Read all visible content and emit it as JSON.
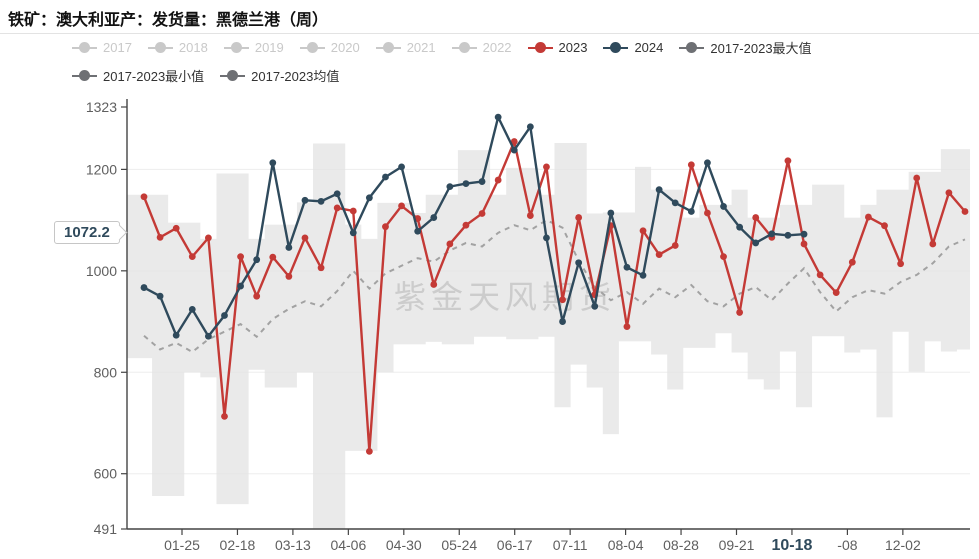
{
  "title": "铁矿：澳大利亚产：发货量：黑德兰港（周）",
  "watermark": "紫金天风期货",
  "badge": {
    "value": "1072.2"
  },
  "legend": {
    "rows": [
      [
        {
          "label": "2017",
          "color": "#c9c9c9",
          "active": false
        },
        {
          "label": "2018",
          "color": "#c9c9c9",
          "active": false
        },
        {
          "label": "2019",
          "color": "#c9c9c9",
          "active": false
        },
        {
          "label": "2020",
          "color": "#c9c9c9",
          "active": false
        },
        {
          "label": "2021",
          "color": "#c9c9c9",
          "active": false
        },
        {
          "label": "2022",
          "color": "#c9c9c9",
          "active": false
        },
        {
          "label": "2023",
          "color": "#c43a36",
          "active": true
        },
        {
          "label": "2024",
          "color": "#2f4a5c",
          "active": true
        },
        {
          "label": "2017-2023最大值",
          "color": "#6e7074",
          "active": true
        }
      ],
      [
        {
          "label": "2017-2023最小值",
          "color": "#6e7074",
          "active": true
        },
        {
          "label": "2017-2023均值",
          "color": "#6e7074",
          "active": true
        }
      ]
    ]
  },
  "chart_data": {
    "type": "line",
    "title": "铁矿：澳大利亚产：发货量：黑德兰港（周）",
    "ylim": [
      491,
      1323
    ],
    "y_axis": {
      "ticks": [
        1323,
        1200,
        1000,
        800,
        600,
        491
      ]
    },
    "x_axis": {
      "labels": [
        "01-25",
        "02-18",
        "03-13",
        "04-06",
        "04-30",
        "05-24",
        "06-17",
        "07-11",
        "08-04",
        "08-28",
        "09-21",
        "10-18",
        "-08",
        "12-02"
      ],
      "highlight": "10-18"
    },
    "grid": true,
    "legend_position": "top",
    "band_color": "#e3e3e3",
    "series": [
      {
        "name": "2023",
        "style": "line-marker",
        "color": "#c43a36",
        "values": [
          1146,
          1066,
          1084,
          1028,
          1065,
          713,
          1028,
          950,
          1027,
          989,
          1065,
          1006,
          1124,
          1118,
          644,
          1087,
          1128,
          1103,
          973,
          1053,
          1090,
          1113,
          1179,
          1255,
          1109,
          1205,
          943,
          1105,
          953,
          1089,
          890,
          1079,
          1032,
          1050,
          1209,
          1114,
          1028,
          918,
          1105,
          1066,
          1217,
          1053,
          992,
          957,
          1017,
          1106,
          1089,
          1014,
          1183,
          1053,
          1154,
          1117
        ]
      },
      {
        "name": "2024",
        "style": "line-marker",
        "color": "#2f4a5c",
        "end_label": "1072.2",
        "values": [
          967,
          950,
          873,
          924,
          871,
          912,
          970,
          1022,
          1213,
          1046,
          1139,
          1137,
          1152,
          1075,
          1144,
          1185,
          1205,
          1078,
          1105,
          1166,
          1172,
          1176,
          1303,
          1238,
          1284,
          1065,
          900,
          1016,
          930,
          1114,
          1007,
          991,
          1160,
          1134,
          1117,
          1213,
          1127,
          1086,
          1055,
          1073,
          1070,
          1072.2
        ]
      },
      {
        "name": "2017-2023均值",
        "style": "dashed-line",
        "color": "#a2a2a2",
        "values": [
          872,
          845,
          858,
          840,
          865,
          880,
          895,
          870,
          905,
          925,
          940,
          930,
          960,
          1000,
          965,
          995,
          1010,
          1025,
          1018,
          1040,
          1055,
          1048,
          1075,
          1090,
          1080,
          1100,
          1085,
          1020,
          968,
          942,
          958,
          935,
          965,
          948,
          972,
          940,
          930,
          955,
          968,
          942,
          975,
          1005,
          958,
          920,
          948,
          962,
          955,
          978,
          992,
          1015,
          1048,
          1062
        ]
      },
      {
        "name": "2017-2023最大值",
        "style": "band-top",
        "color": "#e3e3e3",
        "values": [
          1150,
          1150,
          1095,
          1095,
          1063,
          1192,
          1192,
          1063,
          1091,
          1091,
          1135,
          1251,
          1251,
          1091,
          1063,
          1134,
          1134,
          1114,
          1150,
          1150,
          1238,
          1238,
          1150,
          1203,
          1203,
          1150,
          1252,
          1252,
          1113,
          1115,
          1115,
          1205,
          1160,
          1160,
          1105,
          1130,
          1130,
          1160,
          1105,
          1105,
          1130,
          1130,
          1170,
          1170,
          1105,
          1130,
          1160,
          1160,
          1195,
          1195,
          1240,
          1240
        ]
      },
      {
        "name": "2017-2023最小值",
        "style": "band-bottom",
        "color": "#e3e3e3",
        "values": [
          828,
          556,
          556,
          800,
          790,
          540,
          540,
          805,
          770,
          770,
          800,
          491,
          491,
          645,
          645,
          800,
          855,
          855,
          860,
          855,
          855,
          870,
          870,
          865,
          865,
          870,
          731,
          815,
          770,
          678,
          861,
          861,
          835,
          766,
          848,
          848,
          877,
          839,
          786,
          766,
          841,
          731,
          871,
          871,
          839,
          845,
          711,
          880,
          801,
          861,
          841,
          845
        ]
      }
    ]
  }
}
